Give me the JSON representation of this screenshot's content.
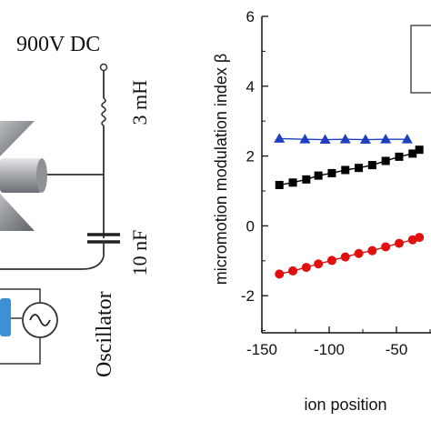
{
  "circuit": {
    "dc_label": "900V DC",
    "inductor_label": "3 mH",
    "capacitor_label": "10 nF",
    "oscillator_label": "Oscillator"
  },
  "chart_data": {
    "type": "scatter",
    "title": "",
    "xlabel": "ion position",
    "ylabel": "micromotion modulation index β",
    "xlim": [
      -150,
      0
    ],
    "ylim": [
      -3.2,
      6
    ],
    "x_ticks": [
      "-150",
      "-100",
      "-50"
    ],
    "y_ticks": [
      "6",
      "4",
      "2",
      "0",
      "-2"
    ],
    "legend_placement": "top-right",
    "grid": false,
    "series": [
      {
        "marker": "triangle",
        "color": "#1f3fbf",
        "x": [
          -137,
          -118,
          -103,
          -88,
          -73,
          -58,
          -42
        ],
        "y": [
          2.5,
          2.48,
          2.47,
          2.48,
          2.47,
          2.48,
          2.48
        ]
      },
      {
        "marker": "square",
        "color": "#000000",
        "x": [
          -137,
          -127,
          -117,
          -108,
          -98,
          -88,
          -78,
          -68,
          -58,
          -48,
          -38,
          -33
        ],
        "y": [
          1.17,
          1.24,
          1.33,
          1.44,
          1.51,
          1.6,
          1.66,
          1.74,
          1.86,
          1.98,
          2.07,
          2.18
        ]
      },
      {
        "marker": "circle",
        "color": "#e01010",
        "x": [
          -137,
          -127,
          -117,
          -108,
          -98,
          -88,
          -78,
          -68,
          -58,
          -48,
          -38,
          -33
        ],
        "y": [
          -1.38,
          -1.29,
          -1.19,
          -1.09,
          -0.99,
          -0.89,
          -0.79,
          -0.71,
          -0.6,
          -0.5,
          -0.4,
          -0.33
        ]
      }
    ]
  }
}
